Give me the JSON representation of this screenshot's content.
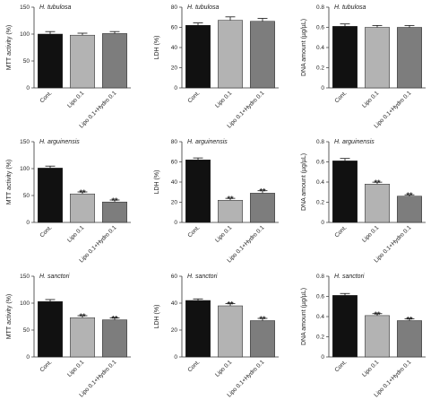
{
  "colors": {
    "cont": "#111111",
    "lipo": "#b3b3b3",
    "hydro": "#7d7d7d",
    "axis": "#333333"
  },
  "chart_data": [
    {
      "type": "bar",
      "title": "H. tubulosa",
      "ylabel": "MTT activity (%)",
      "ylim": [
        0,
        150
      ],
      "yticks": [
        0,
        50,
        100,
        150
      ],
      "categories": [
        "Cont.",
        "Lipo 0.1",
        "Lipo 0.1+Hydro 0.1"
      ],
      "values": [
        100,
        98,
        101
      ],
      "errors": [
        3,
        2,
        2
      ],
      "significance": [
        "",
        "",
        ""
      ]
    },
    {
      "type": "bar",
      "title": "H. tubulosa",
      "ylabel": "LDH (%)",
      "ylim": [
        0,
        80
      ],
      "yticks": [
        0,
        20,
        40,
        60,
        80
      ],
      "categories": [
        "Cont.",
        "Lipo 0.1",
        "Lipo 0.1+Hydro 0.1"
      ],
      "values": [
        62,
        67,
        66
      ],
      "errors": [
        1.5,
        2.5,
        2
      ],
      "significance": [
        "",
        "",
        ""
      ]
    },
    {
      "type": "bar",
      "title": "H. tubulosa",
      "ylabel": "DNA amount (µg/µL)",
      "ylim": [
        0,
        0.8
      ],
      "yticks": [
        0,
        0.2,
        0.4,
        0.6,
        0.8
      ],
      "categories": [
        "Cont.",
        "Lipo 0.1",
        "Lipo 0.1+Hydro 0.1"
      ],
      "values": [
        0.61,
        0.6,
        0.6
      ],
      "errors": [
        0.015,
        0.01,
        0.01
      ],
      "significance": [
        "",
        "",
        ""
      ]
    },
    {
      "type": "bar",
      "title": "H. arguinensis",
      "ylabel": "MTT activity (%)",
      "ylim": [
        0,
        150
      ],
      "yticks": [
        0,
        50,
        100,
        150
      ],
      "categories": [
        "Cont.",
        "Lipo 0.1",
        "Lipo 0.1+Hydro 0.1"
      ],
      "values": [
        101,
        53,
        38
      ],
      "errors": [
        2,
        2,
        2
      ],
      "significance": [
        "",
        "**",
        "**"
      ]
    },
    {
      "type": "bar",
      "title": "H. arguinensis",
      "ylabel": "LDH (%)",
      "ylim": [
        0,
        80
      ],
      "yticks": [
        0,
        20,
        40,
        60,
        80
      ],
      "categories": [
        "Cont.",
        "Lipo 0.1",
        "Lipo 0.1+Hydro 0.1"
      ],
      "values": [
        62,
        22,
        29
      ],
      "errors": [
        1,
        1,
        1.5
      ],
      "significance": [
        "",
        "**",
        "**"
      ]
    },
    {
      "type": "bar",
      "title": "H. arguinensis",
      "ylabel": "DNA amount (µg/µL)",
      "ylim": [
        0,
        0.8
      ],
      "yticks": [
        0,
        0.2,
        0.4,
        0.6,
        0.8
      ],
      "categories": [
        "Cont.",
        "Lipo 0.1",
        "Lipo 0.1+Hydro 0.1"
      ],
      "values": [
        0.61,
        0.38,
        0.26
      ],
      "errors": [
        0.015,
        0.01,
        0.005
      ],
      "significance": [
        "",
        "**",
        "**"
      ]
    },
    {
      "type": "bar",
      "title": "H. sanctori",
      "ylabel": "MTT activity (%)",
      "ylim": [
        0,
        150
      ],
      "yticks": [
        0,
        50,
        100,
        150
      ],
      "categories": [
        "Cont.",
        "Lipo 0.1",
        "Lipo 0.1+Hydro 0.1"
      ],
      "values": [
        103,
        73,
        69
      ],
      "errors": [
        2,
        2,
        2
      ],
      "significance": [
        "",
        "**",
        "**"
      ]
    },
    {
      "type": "bar",
      "title": "H. sanctori",
      "ylabel": "LDH (%)",
      "ylim": [
        0,
        60
      ],
      "yticks": [
        0,
        20,
        40,
        60
      ],
      "categories": [
        "Cont.",
        "Lipo 0.1",
        "Lipo 0.1+Hydro 0.1"
      ],
      "values": [
        42,
        38,
        27
      ],
      "errors": [
        0.5,
        1,
        1
      ],
      "significance": [
        "",
        "**",
        "**"
      ]
    },
    {
      "type": "bar",
      "title": "H. sanctori",
      "ylabel": "DNA amount (µg/µL)",
      "ylim": [
        0,
        0.8
      ],
      "yticks": [
        0,
        0.2,
        0.4,
        0.6,
        0.8
      ],
      "categories": [
        "Cont.",
        "Lipo 0.1",
        "Lipo 0.1+Hydro 0.1"
      ],
      "values": [
        0.61,
        0.41,
        0.36
      ],
      "errors": [
        0.01,
        0.01,
        0.01
      ],
      "significance": [
        "",
        "**",
        "**"
      ]
    }
  ]
}
